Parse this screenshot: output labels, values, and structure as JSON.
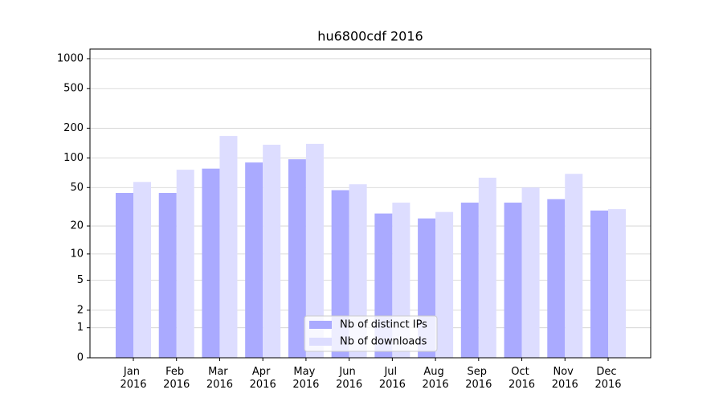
{
  "chart_data": {
    "type": "bar",
    "title": "hu6800cdf 2016",
    "categories": [
      "Jan 2016",
      "Feb 2016",
      "Mar 2016",
      "Apr 2016",
      "May 2016",
      "Jun 2016",
      "Jul 2016",
      "Aug 2016",
      "Sep 2016",
      "Oct 2016",
      "Nov 2016",
      "Dec 2016"
    ],
    "series": [
      {
        "name": "Nb of distinct IPs",
        "color": "#aaaaff",
        "values": [
          44,
          44,
          78,
          90,
          97,
          47,
          27,
          24,
          35,
          35,
          38,
          29
        ]
      },
      {
        "name": "Nb of downloads",
        "color": "#ddddff",
        "values": [
          57,
          76,
          167,
          136,
          139,
          54,
          35,
          28,
          63,
          50,
          69,
          30
        ]
      }
    ],
    "yscale": "log1p",
    "ylim": [
      0,
      1249
    ],
    "yticks": [
      0,
      1,
      2,
      5,
      10,
      20,
      50,
      100,
      200,
      500,
      1000
    ],
    "grid": true,
    "legend": "lower center"
  }
}
